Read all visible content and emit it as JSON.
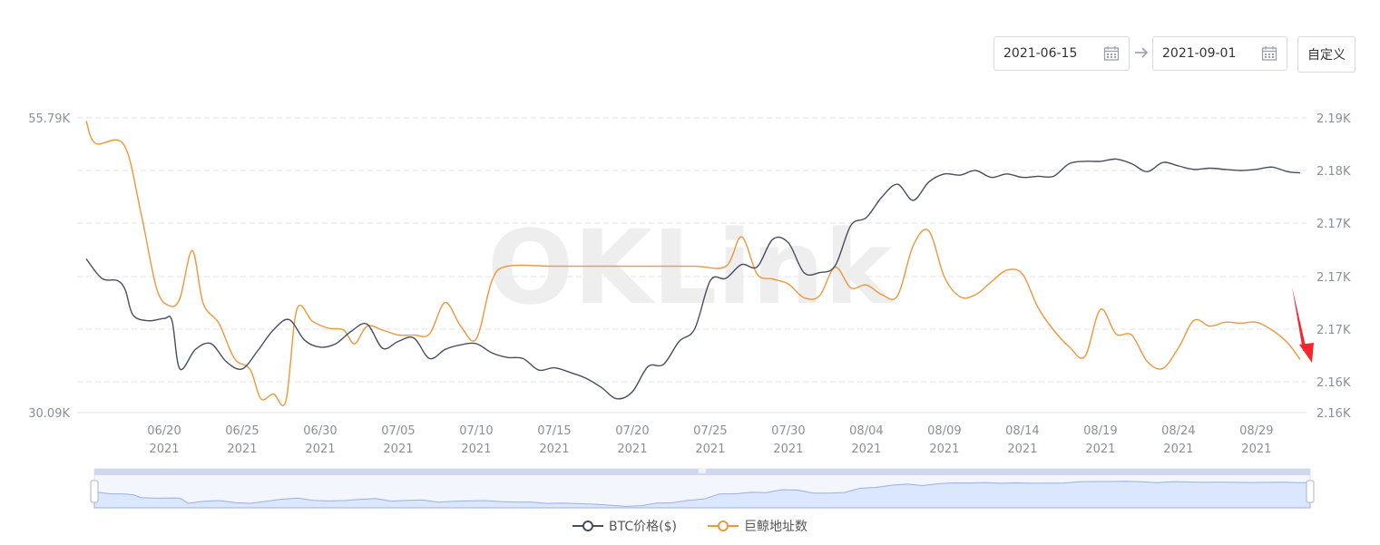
{
  "date_range": {
    "start": "2021-06-15",
    "end": "2021-09-01",
    "custom_label": "自定义",
    "calendar_icon": "calendar-icon",
    "arrow_icon": "arrow-right-icon"
  },
  "colors": {
    "btc": "#4a4d5e",
    "whale": "#f0963c",
    "grid": "#e3e3e3",
    "axis_text": "#8a8f99",
    "annotation_arrow": "#f5262d",
    "slider_fill": "#dbe6ff",
    "slider_line": "#9ab0e8"
  },
  "legend": [
    {
      "name": "BTC价格($)",
      "color": "#4a4d5e"
    },
    {
      "name": "巨鲸地址数",
      "color": "#f0963c"
    }
  ],
  "chart_data": {
    "type": "line",
    "watermark": "OKLink",
    "y_left": {
      "range": [
        30.09,
        55.79
      ],
      "tick_labels": [
        "55.79K",
        "30.09K"
      ]
    },
    "y_right": {
      "range": [
        2.16,
        2.19
      ],
      "tick_labels": [
        "2.19K",
        "2.18K",
        "2.17K",
        "2.17K",
        "2.17K",
        "2.16K",
        "2.16K"
      ]
    },
    "x_ticks": [
      {
        "day": 5,
        "label": "06/20",
        "year": "2021"
      },
      {
        "day": 10,
        "label": "06/25",
        "year": "2021"
      },
      {
        "day": 15,
        "label": "06/30",
        "year": "2021"
      },
      {
        "day": 20,
        "label": "07/05",
        "year": "2021"
      },
      {
        "day": 25,
        "label": "07/10",
        "year": "2021"
      },
      {
        "day": 30,
        "label": "07/15",
        "year": "2021"
      },
      {
        "day": 35,
        "label": "07/20",
        "year": "2021"
      },
      {
        "day": 40,
        "label": "07/25",
        "year": "2021"
      },
      {
        "day": 45,
        "label": "07/30",
        "year": "2021"
      },
      {
        "day": 50,
        "label": "08/04",
        "year": "2021"
      },
      {
        "day": 55,
        "label": "08/09",
        "year": "2021"
      },
      {
        "day": 60,
        "label": "08/14",
        "year": "2021"
      },
      {
        "day": 65,
        "label": "08/19",
        "year": "2021"
      },
      {
        "day": 70,
        "label": "08/24",
        "year": "2021"
      },
      {
        "day": 75,
        "label": "08/29",
        "year": "2021"
      }
    ],
    "x_range": [
      0,
      77.8
    ],
    "series": [
      {
        "name": "BTC价格($)",
        "axis": "left",
        "points": [
          [
            0,
            43.5
          ],
          [
            1,
            41.8
          ],
          [
            2,
            41.6
          ],
          [
            2.5,
            40.8
          ],
          [
            3,
            38.6
          ],
          [
            4,
            38.1
          ],
          [
            5,
            38.3
          ],
          [
            5.5,
            38.1
          ],
          [
            6,
            33.9
          ],
          [
            7,
            35.6
          ],
          [
            8,
            36.1
          ],
          [
            9,
            34.5
          ],
          [
            10,
            33.9
          ],
          [
            11,
            35.5
          ],
          [
            12,
            37.3
          ],
          [
            13,
            38.2
          ],
          [
            14,
            36.4
          ],
          [
            15,
            35.8
          ],
          [
            16,
            36.1
          ],
          [
            17,
            37.2
          ],
          [
            18,
            37.8
          ],
          [
            19,
            35.7
          ],
          [
            20,
            36.3
          ],
          [
            21,
            36.6
          ],
          [
            22,
            34.8
          ],
          [
            23,
            35.6
          ],
          [
            24,
            36.0
          ],
          [
            25,
            36.1
          ],
          [
            26,
            35.3
          ],
          [
            27,
            34.9
          ],
          [
            28,
            34.8
          ],
          [
            29,
            33.8
          ],
          [
            30,
            34.0
          ],
          [
            31,
            33.6
          ],
          [
            32,
            33.1
          ],
          [
            33,
            32.3
          ],
          [
            34,
            31.3
          ],
          [
            35,
            31.9
          ],
          [
            36,
            34.1
          ],
          [
            37,
            34.3
          ],
          [
            38,
            36.3
          ],
          [
            39,
            37.4
          ],
          [
            40,
            41.6
          ],
          [
            41,
            41.8
          ],
          [
            42,
            43.0
          ],
          [
            43,
            42.8
          ],
          [
            44,
            45.2
          ],
          [
            45,
            44.9
          ],
          [
            46,
            42.3
          ],
          [
            47,
            42.3
          ],
          [
            48,
            42.9
          ],
          [
            49,
            46.4
          ],
          [
            50,
            47.1
          ],
          [
            51,
            48.9
          ],
          [
            52,
            50.0
          ],
          [
            53,
            48.6
          ],
          [
            54,
            50.2
          ],
          [
            55,
            50.9
          ],
          [
            56,
            50.8
          ],
          [
            57,
            51.2
          ],
          [
            58,
            50.6
          ],
          [
            59,
            50.9
          ],
          [
            60,
            50.6
          ],
          [
            61,
            50.7
          ],
          [
            62,
            50.7
          ],
          [
            63,
            51.8
          ],
          [
            64,
            52.0
          ],
          [
            65,
            52.0
          ],
          [
            66,
            52.2
          ],
          [
            67,
            51.8
          ],
          [
            68,
            51.1
          ],
          [
            69,
            51.9
          ],
          [
            70,
            51.6
          ],
          [
            71,
            51.3
          ],
          [
            72,
            51.4
          ],
          [
            73,
            51.3
          ],
          [
            74,
            51.2
          ],
          [
            75,
            51.3
          ],
          [
            76,
            51.5
          ],
          [
            77,
            51.1
          ],
          [
            77.8,
            51.0
          ]
        ]
      },
      {
        "name": "巨鲸地址数",
        "axis": "right",
        "points": [
          [
            0,
            2.1897
          ],
          [
            0.6,
            2.1874
          ],
          [
            2.4,
            2.1873
          ],
          [
            3.5,
            2.1804
          ],
          [
            4.5,
            2.1727
          ],
          [
            5.3,
            2.1709
          ],
          [
            6,
            2.1716
          ],
          [
            6.8,
            2.1765
          ],
          [
            7.5,
            2.1711
          ],
          [
            8.5,
            2.1691
          ],
          [
            9.5,
            2.1655
          ],
          [
            10.5,
            2.1644
          ],
          [
            11.2,
            2.1614
          ],
          [
            12.0,
            2.1619
          ],
          [
            12.8,
            2.1612
          ],
          [
            13.5,
            2.1705
          ],
          [
            14.5,
            2.1693
          ],
          [
            15.5,
            2.1686
          ],
          [
            16.5,
            2.1684
          ],
          [
            17.2,
            2.167
          ],
          [
            18,
            2.1688
          ],
          [
            19,
            2.1684
          ],
          [
            20,
            2.1679
          ],
          [
            21,
            2.1679
          ],
          [
            22,
            2.168
          ],
          [
            23,
            2.1712
          ],
          [
            24,
            2.1688
          ],
          [
            25,
            2.1675
          ],
          [
            26,
            2.1734
          ],
          [
            27,
            2.1749
          ],
          [
            30,
            2.1749
          ],
          [
            33,
            2.1749
          ],
          [
            36,
            2.1749
          ],
          [
            39,
            2.1749
          ],
          [
            41,
            2.1749
          ],
          [
            42,
            2.1779
          ],
          [
            43,
            2.1741
          ],
          [
            44,
            2.1736
          ],
          [
            45,
            2.1731
          ],
          [
            46,
            2.1717
          ],
          [
            47,
            2.1719
          ],
          [
            48,
            2.1748
          ],
          [
            49,
            2.1727
          ],
          [
            50,
            2.173
          ],
          [
            51,
            2.172
          ],
          [
            52,
            2.1719
          ],
          [
            53,
            2.177
          ],
          [
            54,
            2.1785
          ],
          [
            55,
            2.1738
          ],
          [
            56,
            2.1718
          ],
          [
            57,
            2.172
          ],
          [
            58,
            2.1733
          ],
          [
            59,
            2.1745
          ],
          [
            60,
            2.1741
          ],
          [
            61,
            2.1707
          ],
          [
            62,
            2.1684
          ],
          [
            63,
            2.1667
          ],
          [
            64,
            2.1657
          ],
          [
            65,
            2.1705
          ],
          [
            66,
            2.168
          ],
          [
            67,
            2.1679
          ],
          [
            68,
            2.1652
          ],
          [
            69,
            2.1645
          ],
          [
            70,
            2.1666
          ],
          [
            71,
            2.1694
          ],
          [
            72,
            2.1688
          ],
          [
            73,
            2.1692
          ],
          [
            74,
            2.1691
          ],
          [
            75,
            2.1692
          ],
          [
            76,
            2.1684
          ],
          [
            77,
            2.1671
          ],
          [
            77.8,
            2.1654
          ]
        ]
      }
    ],
    "annotation": {
      "type": "red-arrow",
      "points_to_day": 77.8
    }
  }
}
